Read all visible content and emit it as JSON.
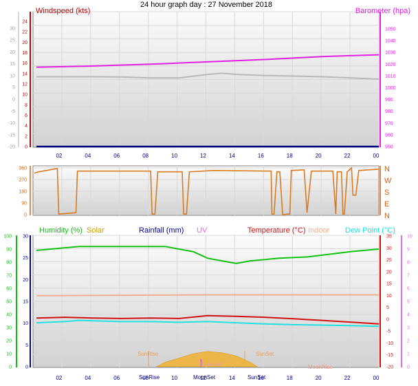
{
  "title": "24 hour graph day : 27 November 2018",
  "colors": {
    "wind": "#c00000",
    "baro": "#e020e0",
    "windMain": "#b8b8b8",
    "dir": "#d87a20",
    "humidity": "#10c010",
    "solar": "#c8a000",
    "rainfall": "#0000a0",
    "uv": "#e070e0",
    "temperature": "#d01010",
    "indoor": "#f0b090",
    "dewpoint": "#20e0e0",
    "axis": "#000080",
    "sunrise": "#e6a060",
    "moon": "#e6a090"
  },
  "chart_data": [
    {
      "type": "line",
      "name": "wind-baro",
      "labels": {
        "left": "Windspeed (kts)",
        "right": "Barometer (hpa)"
      },
      "xticks": [
        "02",
        "04",
        "06",
        "08",
        "10",
        "12",
        "14",
        "16",
        "18",
        "20",
        "22",
        "00"
      ],
      "ylim_left_inner": [
        0,
        24
      ],
      "yticks_left_inner": [
        "0",
        "2",
        "4",
        "6",
        "8",
        "10",
        "12",
        "14",
        "16",
        "18",
        "20",
        "22",
        "24"
      ],
      "ylim_left_outer": [
        -20,
        30
      ],
      "yticks_left_outer": [
        "-20",
        "-15",
        "-10",
        "-5",
        "0",
        "5",
        "10",
        "15",
        "20",
        "25",
        "30"
      ],
      "ylim_right": [
        950,
        1050
      ],
      "yticks_right": [
        "950",
        "960",
        "970",
        "980",
        "990",
        "1000",
        "1010",
        "1020",
        "1030",
        "1040",
        "1050"
      ],
      "series": [
        {
          "key": "baro",
          "axis": "right",
          "x": [
            0,
            4,
            8,
            12,
            16,
            20,
            24
          ],
          "values": [
            1017.5,
            1018.5,
            1020,
            1022,
            1024,
            1026.5,
            1028
          ]
        },
        {
          "key": "windMain",
          "axis": "outer",
          "x": [
            0,
            2,
            4,
            6,
            8,
            10,
            12,
            13,
            14,
            16,
            18,
            20,
            22,
            24
          ],
          "values": [
            9.5,
            9.5,
            9.5,
            9.4,
            9.0,
            9.0,
            10.5,
            11.0,
            10.5,
            10.0,
            9.8,
            9.5,
            9.0,
            8.5
          ]
        },
        {
          "key": "axis",
          "axis": "inner",
          "x": [
            0,
            24
          ],
          "values": [
            0,
            0
          ]
        }
      ]
    },
    {
      "type": "line",
      "name": "wind-direction",
      "yticks": [
        "0",
        "90",
        "180",
        "270",
        "360"
      ],
      "ylim": [
        0,
        360
      ],
      "compass": [
        "N",
        "W",
        "S",
        "E",
        "N"
      ],
      "x": [
        0,
        0.3,
        1.1,
        1.3,
        1.6,
        1.7,
        2.9,
        3.0,
        8.1,
        8.2,
        8.4,
        8.6,
        10.3,
        10.4,
        10.6,
        10.8,
        12.5,
        16.5,
        16.55,
        16.7,
        16.9,
        17.1,
        17.3,
        17.4,
        17.6,
        17.8,
        17.9,
        18.8,
        19.0,
        19.3,
        20.8,
        21.0,
        21.1,
        21.4,
        21.5,
        21.6,
        21.8,
        21.9,
        22.1,
        22.2,
        22.4,
        22.6,
        24
      ],
      "values": [
        320,
        330,
        345,
        350,
        355,
        5,
        15,
        335,
        335,
        5,
        5,
        330,
        330,
        5,
        5,
        330,
        340,
        335,
        5,
        5,
        330,
        330,
        0,
        0,
        5,
        5,
        340,
        345,
        15,
        335,
        335,
        5,
        330,
        330,
        5,
        5,
        330,
        340,
        360,
        150,
        150,
        340,
        350
      ]
    },
    {
      "type": "line",
      "name": "temperature-humidity",
      "labels": [
        "Humidity (%)",
        "Solar",
        "Rainfall (mm)",
        "UV",
        "Temperature (°C)",
        "Indoor",
        "Dew Point (°C)"
      ],
      "ylim_humidity": [
        0,
        100
      ],
      "yticks_humidity": [
        "0",
        "10",
        "20",
        "30",
        "40",
        "50",
        "60",
        "70",
        "80",
        "90",
        "100"
      ],
      "ylim_rain": [
        0,
        30
      ],
      "yticks_rain": [
        "0",
        "5",
        "10",
        "15",
        "20",
        "25",
        "30"
      ],
      "ylim_temp": [
        -20,
        35
      ],
      "yticks_temp": [
        "-20",
        "-15",
        "-10",
        "-5",
        "0",
        "5",
        "10",
        "15",
        "20",
        "25",
        "30",
        "35"
      ],
      "ylim_uv": [
        0,
        10
      ],
      "yticks_uv": [
        "0",
        "1",
        "2",
        "3",
        "4",
        "5",
        "6",
        "7",
        "8",
        "9",
        "10"
      ],
      "xticks": [
        "02",
        "04",
        "06",
        "08",
        "10",
        "12",
        "14",
        "16",
        "18",
        "20",
        "22",
        "00"
      ],
      "annotations": [
        "SunRise",
        "SunSet",
        "MoonSet",
        "SunRise",
        "MoonSet",
        "SunSet",
        "MoonRise"
      ],
      "series": [
        {
          "key": "humidity",
          "axis": "humidity",
          "x": [
            0,
            1,
            3,
            6,
            9,
            11,
            12,
            14,
            15,
            17,
            19,
            22,
            24
          ],
          "values": [
            89,
            90,
            92,
            92,
            92,
            88,
            83,
            79,
            81,
            83,
            84,
            88,
            90
          ]
        },
        {
          "key": "indoor",
          "axis": "rain",
          "x": [
            0,
            12,
            24
          ],
          "values": [
            16.3,
            16.5,
            16.5
          ]
        },
        {
          "key": "temperature",
          "axis": "temp",
          "x": [
            0,
            2,
            4,
            6,
            8,
            10,
            12,
            14,
            16,
            18,
            20,
            22,
            24
          ],
          "values": [
            0.5,
            0.8,
            0.5,
            0.3,
            0.5,
            0.3,
            1.5,
            1.2,
            0.8,
            0.2,
            -0.5,
            -1.2,
            -2.0
          ]
        },
        {
          "key": "dewpoint",
          "axis": "temp",
          "x": [
            0,
            2,
            3,
            6,
            8,
            10,
            12,
            14,
            16,
            18,
            20,
            22,
            24
          ],
          "values": [
            -1.5,
            -1.0,
            -0.5,
            -1.0,
            -1.0,
            -1.3,
            -1.0,
            -1.5,
            -2.0,
            -2.3,
            -2.5,
            -2.7,
            -3.0
          ]
        },
        {
          "key": "solar",
          "axis": "rain",
          "x": [
            8.4,
            9,
            10,
            11,
            12,
            13,
            14,
            15,
            15.5
          ],
          "values": [
            0,
            1,
            2,
            3,
            3.5,
            3.2,
            2.5,
            1,
            0
          ]
        }
      ]
    }
  ]
}
